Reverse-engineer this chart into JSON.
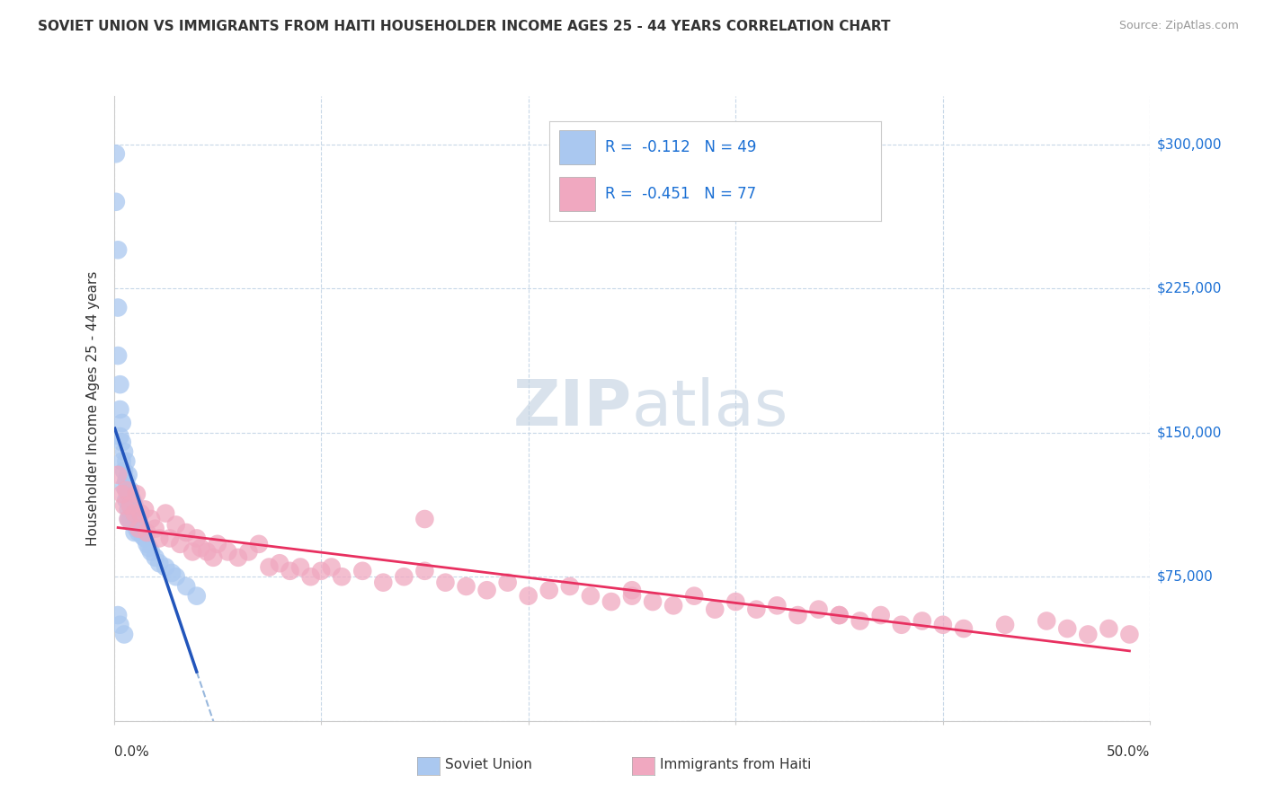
{
  "title": "SOVIET UNION VS IMMIGRANTS FROM HAITI HOUSEHOLDER INCOME AGES 25 - 44 YEARS CORRELATION CHART",
  "source": "Source: ZipAtlas.com",
  "ylabel": "Householder Income Ages 25 - 44 years",
  "xlim": [
    0.0,
    0.5
  ],
  "ylim": [
    0,
    325000
  ],
  "yticks": [
    0,
    75000,
    150000,
    225000,
    300000
  ],
  "ytick_labels": [
    "",
    "$75,000",
    "$150,000",
    "$225,000",
    "$300,000"
  ],
  "xticks": [
    0.0,
    0.1,
    0.2,
    0.3,
    0.4,
    0.5
  ],
  "blue_color": "#aac8f0",
  "pink_color": "#f0a8c0",
  "blue_line_color": "#2255bb",
  "pink_line_color": "#e83060",
  "blue_dash_color": "#99b8dd",
  "grid_color": "#c8d8e8",
  "right_label_color": "#1a6fd4",
  "title_color": "#333333",
  "source_color": "#999999",
  "watermark_color": "#c8d8e8",
  "soviet_union_x": [
    0.001,
    0.001,
    0.002,
    0.002,
    0.002,
    0.003,
    0.003,
    0.003,
    0.004,
    0.004,
    0.004,
    0.005,
    0.005,
    0.005,
    0.006,
    0.006,
    0.006,
    0.007,
    0.007,
    0.007,
    0.007,
    0.008,
    0.008,
    0.008,
    0.009,
    0.009,
    0.01,
    0.01,
    0.01,
    0.011,
    0.011,
    0.012,
    0.012,
    0.013,
    0.014,
    0.015,
    0.016,
    0.017,
    0.018,
    0.02,
    0.022,
    0.025,
    0.028,
    0.03,
    0.035,
    0.04,
    0.002,
    0.003,
    0.005
  ],
  "soviet_union_y": [
    295000,
    270000,
    245000,
    215000,
    190000,
    175000,
    162000,
    148000,
    155000,
    145000,
    135000,
    140000,
    130000,
    122000,
    135000,
    125000,
    115000,
    128000,
    118000,
    110000,
    105000,
    120000,
    112000,
    105000,
    115000,
    108000,
    112000,
    105000,
    98000,
    108000,
    100000,
    105000,
    98000,
    100000,
    96000,
    95000,
    92000,
    90000,
    88000,
    85000,
    82000,
    80000,
    77000,
    75000,
    70000,
    65000,
    55000,
    50000,
    45000
  ],
  "haiti_x": [
    0.002,
    0.004,
    0.005,
    0.006,
    0.007,
    0.008,
    0.01,
    0.011,
    0.012,
    0.013,
    0.015,
    0.016,
    0.018,
    0.02,
    0.022,
    0.025,
    0.027,
    0.03,
    0.032,
    0.035,
    0.038,
    0.04,
    0.042,
    0.045,
    0.048,
    0.05,
    0.055,
    0.06,
    0.065,
    0.07,
    0.075,
    0.08,
    0.085,
    0.09,
    0.095,
    0.1,
    0.105,
    0.11,
    0.12,
    0.13,
    0.14,
    0.15,
    0.16,
    0.17,
    0.18,
    0.19,
    0.2,
    0.21,
    0.22,
    0.23,
    0.24,
    0.25,
    0.26,
    0.27,
    0.28,
    0.29,
    0.3,
    0.31,
    0.32,
    0.33,
    0.34,
    0.35,
    0.36,
    0.37,
    0.38,
    0.39,
    0.4,
    0.41,
    0.43,
    0.45,
    0.46,
    0.47,
    0.48,
    0.49,
    0.15,
    0.25,
    0.35
  ],
  "haiti_y": [
    128000,
    118000,
    112000,
    120000,
    105000,
    112000,
    108000,
    118000,
    100000,
    108000,
    110000,
    98000,
    105000,
    100000,
    95000,
    108000,
    95000,
    102000,
    92000,
    98000,
    88000,
    95000,
    90000,
    88000,
    85000,
    92000,
    88000,
    85000,
    88000,
    92000,
    80000,
    82000,
    78000,
    80000,
    75000,
    78000,
    80000,
    75000,
    78000,
    72000,
    75000,
    78000,
    72000,
    70000,
    68000,
    72000,
    65000,
    68000,
    70000,
    65000,
    62000,
    68000,
    62000,
    60000,
    65000,
    58000,
    62000,
    58000,
    60000,
    55000,
    58000,
    55000,
    52000,
    55000,
    50000,
    52000,
    50000,
    48000,
    50000,
    52000,
    48000,
    45000,
    48000,
    45000,
    105000,
    65000,
    55000
  ]
}
